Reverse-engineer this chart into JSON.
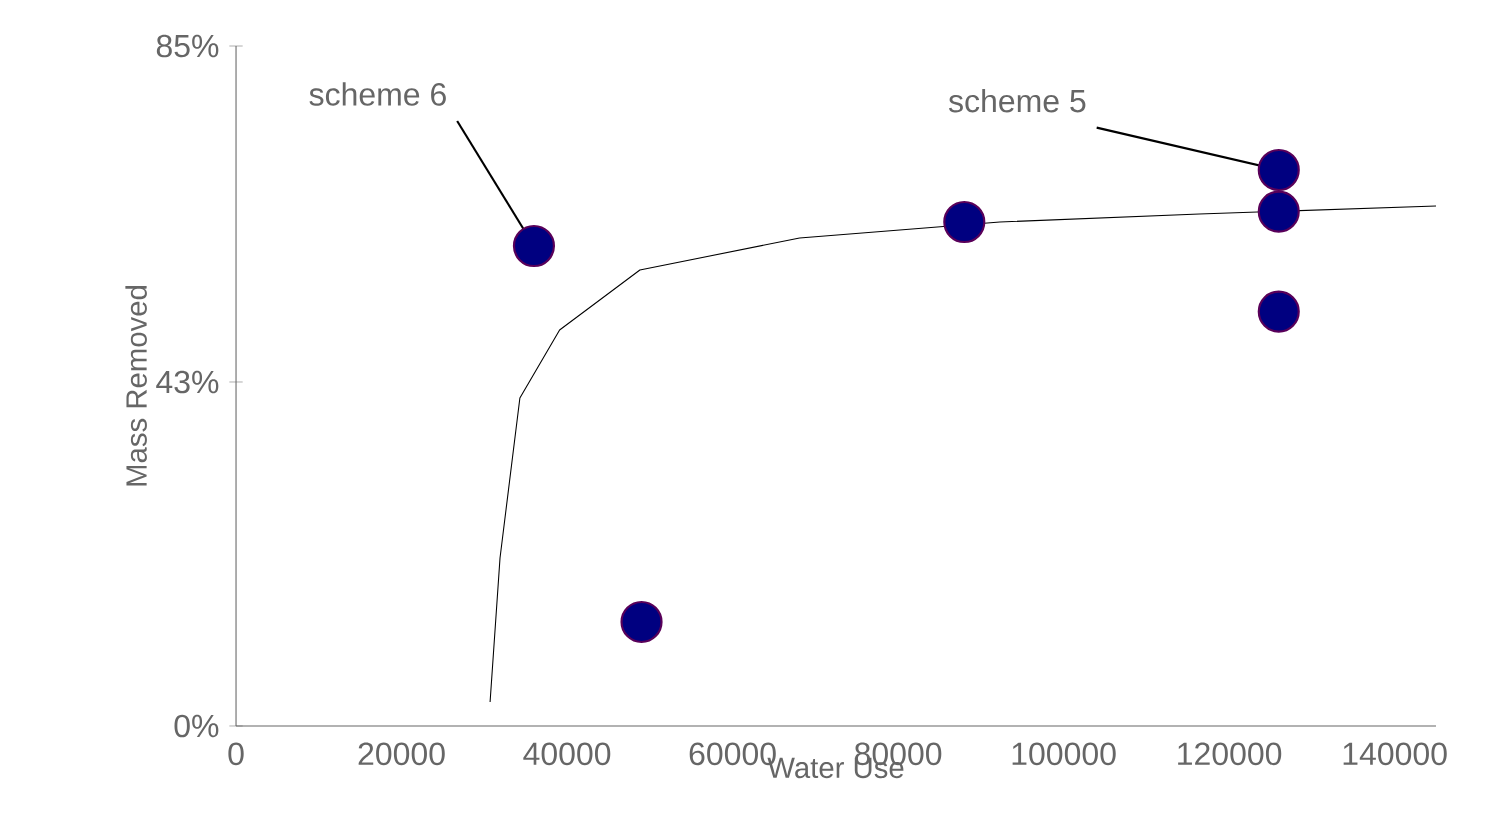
{
  "chart_data": {
    "type": "scatter",
    "xlabel": "Water Use",
    "ylabel": "Mass Removed",
    "xlim": [
      0,
      145000
    ],
    "ylim": [
      0,
      85
    ],
    "xticks": [
      0,
      20000,
      40000,
      60000,
      80000,
      100000,
      120000,
      140000
    ],
    "yticks": [
      {
        "value": 0,
        "label": "0%"
      },
      {
        "value": 43,
        "label": "43%"
      },
      {
        "value": 85,
        "label": "85%"
      }
    ],
    "grid": false,
    "marker": "circle",
    "series": [
      {
        "color": "#000080",
        "x": [
          36000,
          49000,
          88000,
          126000,
          126000,
          126000
        ],
        "values": [
          60,
          13,
          63,
          69.5,
          64.3,
          51.8
        ]
      },
      {
        "type": "line",
        "marker": "none",
        "color": "#000000",
        "x": [
          30700,
          31900,
          34300,
          39100,
          48800,
          68100,
          92300,
          116400,
          145000
        ],
        "values": [
          3,
          21,
          41,
          49.5,
          57,
          61,
          63,
          64,
          65
        ]
      }
    ],
    "annotations": [
      {
        "text": "scheme 6",
        "x": 36000,
        "y": 60
      },
      {
        "text": "scheme 5",
        "x": 126000,
        "y": 69.5
      }
    ]
  }
}
